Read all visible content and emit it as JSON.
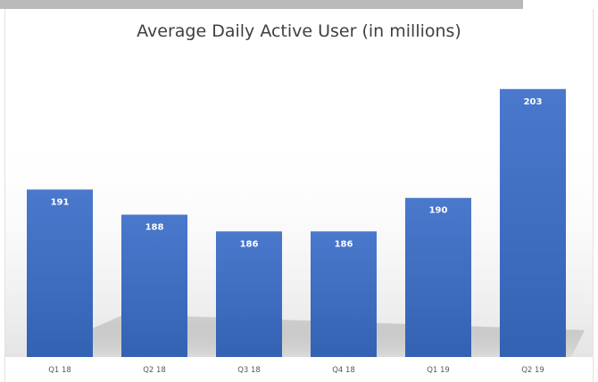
{
  "chart_data": {
    "type": "bar",
    "title": "Average Daily Active User (in millions)",
    "xlabel": "",
    "ylabel": "",
    "categories": [
      "Q1 18",
      "Q2 18",
      "Q3 18",
      "Q4 18",
      "Q1 19",
      "Q2 19"
    ],
    "values": [
      191,
      188,
      186,
      186,
      190,
      203
    ],
    "data_labels": [
      "191",
      "188",
      "186",
      "186",
      "190",
      "203"
    ],
    "ylim": [
      171,
      205
    ],
    "grid": false,
    "legend": "none",
    "bar_color": "#4472c4"
  }
}
